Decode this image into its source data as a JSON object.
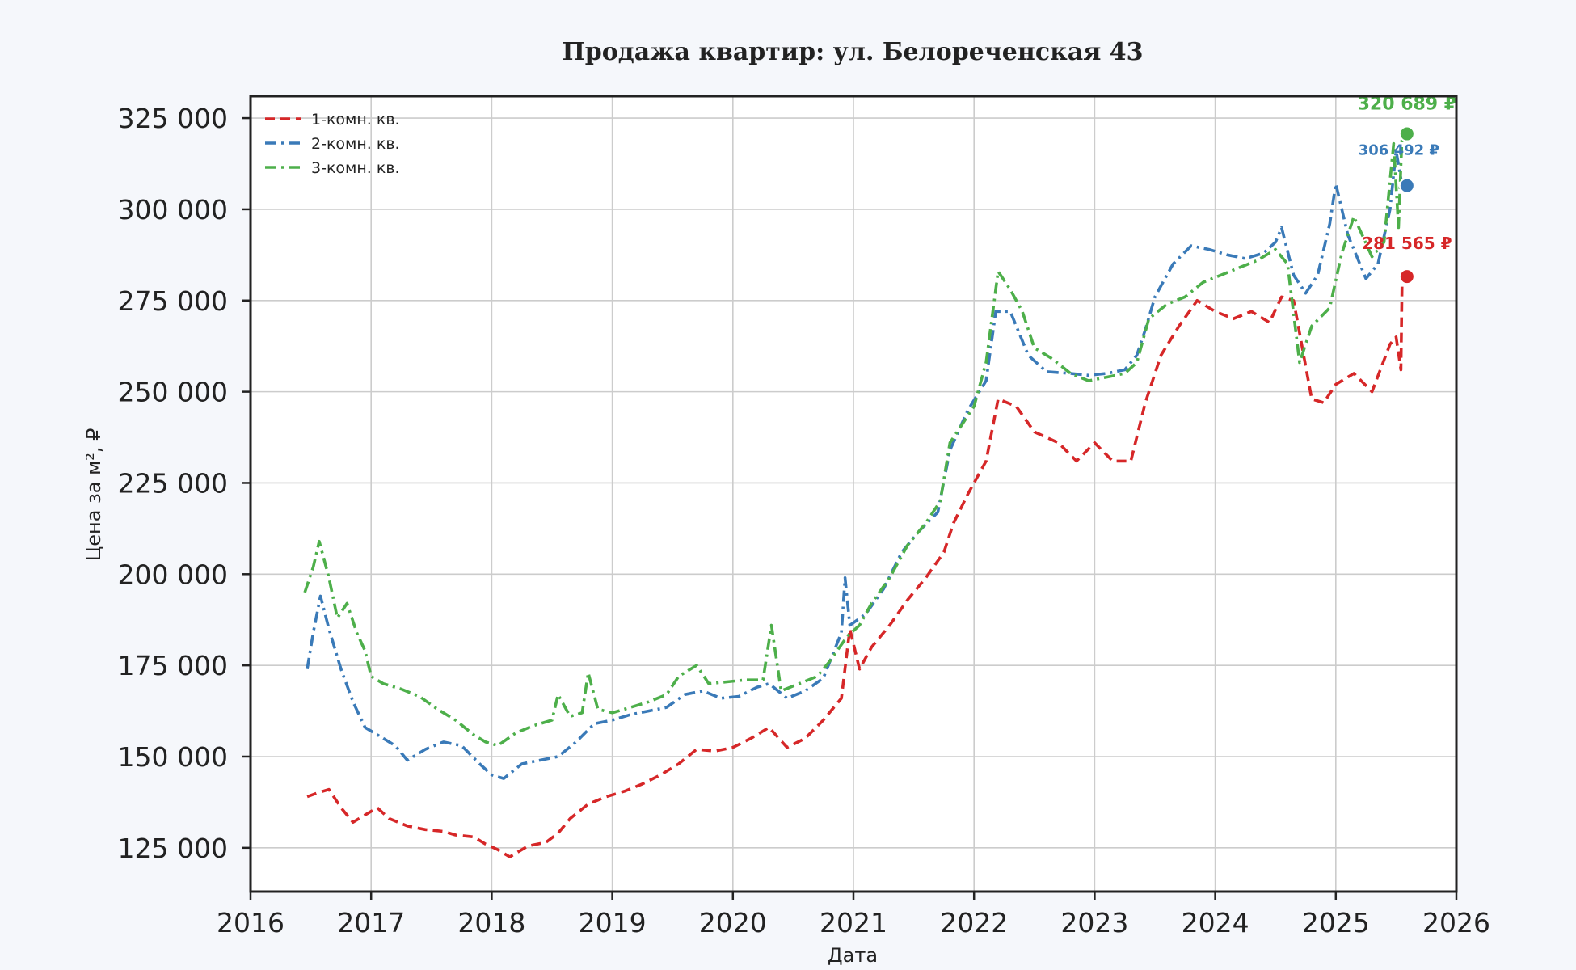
{
  "chart_data": {
    "type": "line",
    "title": "Продажа квартир: ул. Белореченская 43",
    "xlabel": "Дата",
    "ylabel": "Цена за м², ₽",
    "xlim": [
      2016,
      2026
    ],
    "ylim": [
      113000,
      331000
    ],
    "x_ticks": [
      "2016",
      "2017",
      "2018",
      "2019",
      "2020",
      "2021",
      "2022",
      "2023",
      "2024",
      "2025",
      "2026"
    ],
    "y_ticks": [
      "125 000",
      "150 000",
      "175 000",
      "200 000",
      "225 000",
      "250 000",
      "275 000",
      "300 000",
      "325 000"
    ],
    "grid": true,
    "legend": "top-left",
    "series": [
      {
        "name": "1-комн. кв.",
        "color": "#d62728",
        "dash": "dashed",
        "last_value_label": "281 565 ₽",
        "points": [
          [
            2016.47,
            139000
          ],
          [
            2016.55,
            140000
          ],
          [
            2016.65,
            141000
          ],
          [
            2016.75,
            136000
          ],
          [
            2016.85,
            132000
          ],
          [
            2016.95,
            134000
          ],
          [
            2017.05,
            136000
          ],
          [
            2017.15,
            133000
          ],
          [
            2017.3,
            131000
          ],
          [
            2017.45,
            130000
          ],
          [
            2017.6,
            129500
          ],
          [
            2017.7,
            128500
          ],
          [
            2017.85,
            128000
          ],
          [
            2017.95,
            126000
          ],
          [
            2018.05,
            124500
          ],
          [
            2018.15,
            122500
          ],
          [
            2018.3,
            125500
          ],
          [
            2018.45,
            126500
          ],
          [
            2018.55,
            129000
          ],
          [
            2018.65,
            133000
          ],
          [
            2018.8,
            137000
          ],
          [
            2018.95,
            139000
          ],
          [
            2019.1,
            140500
          ],
          [
            2019.25,
            142500
          ],
          [
            2019.4,
            145000
          ],
          [
            2019.55,
            148000
          ],
          [
            2019.7,
            152000
          ],
          [
            2019.85,
            151500
          ],
          [
            2020.0,
            152500
          ],
          [
            2020.15,
            155000
          ],
          [
            2020.3,
            158000
          ],
          [
            2020.45,
            152500
          ],
          [
            2020.6,
            155000
          ],
          [
            2020.75,
            160000
          ],
          [
            2020.9,
            166000
          ],
          [
            2020.97,
            185000
          ],
          [
            2021.05,
            174000
          ],
          [
            2021.15,
            180000
          ],
          [
            2021.3,
            186000
          ],
          [
            2021.45,
            193000
          ],
          [
            2021.6,
            199000
          ],
          [
            2021.75,
            206000
          ],
          [
            2021.83,
            214000
          ],
          [
            2021.95,
            222000
          ],
          [
            2022.1,
            231000
          ],
          [
            2022.2,
            248000
          ],
          [
            2022.35,
            246000
          ],
          [
            2022.5,
            239000
          ],
          [
            2022.7,
            236000
          ],
          [
            2022.85,
            231000
          ],
          [
            2023.0,
            236000
          ],
          [
            2023.15,
            231000
          ],
          [
            2023.3,
            231000
          ],
          [
            2023.42,
            247000
          ],
          [
            2023.55,
            260000
          ],
          [
            2023.7,
            268000
          ],
          [
            2023.85,
            275000
          ],
          [
            2024.0,
            272000
          ],
          [
            2024.15,
            270000
          ],
          [
            2024.3,
            272000
          ],
          [
            2024.45,
            269000
          ],
          [
            2024.55,
            276000
          ],
          [
            2024.65,
            275000
          ],
          [
            2024.8,
            248000
          ],
          [
            2024.9,
            247000
          ],
          [
            2025.0,
            252000
          ],
          [
            2025.15,
            255000
          ],
          [
            2025.3,
            250000
          ],
          [
            2025.45,
            263000
          ],
          [
            2025.5,
            265000
          ],
          [
            2025.54,
            256000
          ],
          [
            2025.55,
            281565
          ]
        ]
      },
      {
        "name": "2-комн. кв.",
        "color": "#3a7ab8",
        "dash": "dashdot",
        "last_value_label": "306 492 ₽",
        "points": [
          [
            2016.47,
            174000
          ],
          [
            2016.52,
            184000
          ],
          [
            2016.58,
            194000
          ],
          [
            2016.65,
            185000
          ],
          [
            2016.75,
            174000
          ],
          [
            2016.85,
            165000
          ],
          [
            2016.95,
            158000
          ],
          [
            2017.05,
            156000
          ],
          [
            2017.2,
            153000
          ],
          [
            2017.3,
            149000
          ],
          [
            2017.45,
            152000
          ],
          [
            2017.6,
            154000
          ],
          [
            2017.75,
            153000
          ],
          [
            2017.9,
            148000
          ],
          [
            2018.0,
            145000
          ],
          [
            2018.1,
            144000
          ],
          [
            2018.25,
            148000
          ],
          [
            2018.4,
            149000
          ],
          [
            2018.55,
            150000
          ],
          [
            2018.7,
            154000
          ],
          [
            2018.85,
            159000
          ],
          [
            2019.0,
            160000
          ],
          [
            2019.15,
            161500
          ],
          [
            2019.3,
            162500
          ],
          [
            2019.45,
            163500
          ],
          [
            2019.6,
            167000
          ],
          [
            2019.75,
            168000
          ],
          [
            2019.9,
            166000
          ],
          [
            2020.05,
            166500
          ],
          [
            2020.2,
            169000
          ],
          [
            2020.3,
            170000
          ],
          [
            2020.45,
            166000
          ],
          [
            2020.6,
            168000
          ],
          [
            2020.75,
            171500
          ],
          [
            2020.9,
            184000
          ],
          [
            2020.93,
            199000
          ],
          [
            2020.97,
            186000
          ],
          [
            2021.1,
            189000
          ],
          [
            2021.25,
            196000
          ],
          [
            2021.4,
            206000
          ],
          [
            2021.55,
            212000
          ],
          [
            2021.7,
            217000
          ],
          [
            2021.8,
            234000
          ],
          [
            2021.95,
            245000
          ],
          [
            2022.1,
            253000
          ],
          [
            2022.18,
            272000
          ],
          [
            2022.3,
            272000
          ],
          [
            2022.45,
            260000
          ],
          [
            2022.6,
            255500
          ],
          [
            2022.8,
            255000
          ],
          [
            2022.95,
            254500
          ],
          [
            2023.1,
            255000
          ],
          [
            2023.25,
            256000
          ],
          [
            2023.35,
            260000
          ],
          [
            2023.42,
            267000
          ],
          [
            2023.5,
            276000
          ],
          [
            2023.65,
            285000
          ],
          [
            2023.8,
            290000
          ],
          [
            2023.95,
            289000
          ],
          [
            2024.1,
            287500
          ],
          [
            2024.25,
            286500
          ],
          [
            2024.4,
            288000
          ],
          [
            2024.5,
            291000
          ],
          [
            2024.55,
            295000
          ],
          [
            2024.65,
            282000
          ],
          [
            2024.75,
            277000
          ],
          [
            2024.85,
            282000
          ],
          [
            2024.95,
            296000
          ],
          [
            2025.0,
            307000
          ],
          [
            2025.1,
            293000
          ],
          [
            2025.25,
            281000
          ],
          [
            2025.35,
            285000
          ],
          [
            2025.45,
            300000
          ],
          [
            2025.5,
            316000
          ],
          [
            2025.55,
            306492
          ]
        ]
      },
      {
        "name": "3-комн. кв.",
        "color": "#4daf4a",
        "dash": "dashdot",
        "last_value_label": "320 689 ₽",
        "points": [
          [
            2016.45,
            195000
          ],
          [
            2016.52,
            202000
          ],
          [
            2016.57,
            209000
          ],
          [
            2016.65,
            199000
          ],
          [
            2016.72,
            188000
          ],
          [
            2016.8,
            192000
          ],
          [
            2016.88,
            184000
          ],
          [
            2016.95,
            179000
          ],
          [
            2017.0,
            172000
          ],
          [
            2017.1,
            170000
          ],
          [
            2017.25,
            168500
          ],
          [
            2017.4,
            166500
          ],
          [
            2017.55,
            163000
          ],
          [
            2017.7,
            160000
          ],
          [
            2017.85,
            156000
          ],
          [
            2017.95,
            154000
          ],
          [
            2018.05,
            153000
          ],
          [
            2018.2,
            156500
          ],
          [
            2018.35,
            158500
          ],
          [
            2018.5,
            160000
          ],
          [
            2018.55,
            167000
          ],
          [
            2018.65,
            161000
          ],
          [
            2018.75,
            162000
          ],
          [
            2018.8,
            173000
          ],
          [
            2018.88,
            163000
          ],
          [
            2019.0,
            162000
          ],
          [
            2019.15,
            163500
          ],
          [
            2019.3,
            165000
          ],
          [
            2019.45,
            167000
          ],
          [
            2019.55,
            172000
          ],
          [
            2019.7,
            175000
          ],
          [
            2019.8,
            170000
          ],
          [
            2019.95,
            170500
          ],
          [
            2020.1,
            171000
          ],
          [
            2020.25,
            171000
          ],
          [
            2020.32,
            186000
          ],
          [
            2020.4,
            168000
          ],
          [
            2020.55,
            170000
          ],
          [
            2020.7,
            172000
          ],
          [
            2020.8,
            176000
          ],
          [
            2020.95,
            183000
          ],
          [
            2021.05,
            186000
          ],
          [
            2021.15,
            192000
          ],
          [
            2021.3,
            199000
          ],
          [
            2021.45,
            208000
          ],
          [
            2021.6,
            214000
          ],
          [
            2021.72,
            220000
          ],
          [
            2021.8,
            236000
          ],
          [
            2021.9,
            241000
          ],
          [
            2022.0,
            246000
          ],
          [
            2022.1,
            258000
          ],
          [
            2022.2,
            283000
          ],
          [
            2022.3,
            278000
          ],
          [
            2022.4,
            272000
          ],
          [
            2022.5,
            262000
          ],
          [
            2022.65,
            259000
          ],
          [
            2022.8,
            255000
          ],
          [
            2022.95,
            253000
          ],
          [
            2023.1,
            254000
          ],
          [
            2023.25,
            255000
          ],
          [
            2023.35,
            258000
          ],
          [
            2023.45,
            270000
          ],
          [
            2023.6,
            274000
          ],
          [
            2023.75,
            276000
          ],
          [
            2023.9,
            280000
          ],
          [
            2024.05,
            282000
          ],
          [
            2024.2,
            284000
          ],
          [
            2024.35,
            286000
          ],
          [
            2024.5,
            289000
          ],
          [
            2024.6,
            285000
          ],
          [
            2024.7,
            258000
          ],
          [
            2024.8,
            268000
          ],
          [
            2024.95,
            273000
          ],
          [
            2025.05,
            288000
          ],
          [
            2025.15,
            298000
          ],
          [
            2025.3,
            287000
          ],
          [
            2025.4,
            291000
          ],
          [
            2025.48,
            318000
          ],
          [
            2025.52,
            295000
          ],
          [
            2025.55,
            320689
          ]
        ]
      }
    ]
  }
}
